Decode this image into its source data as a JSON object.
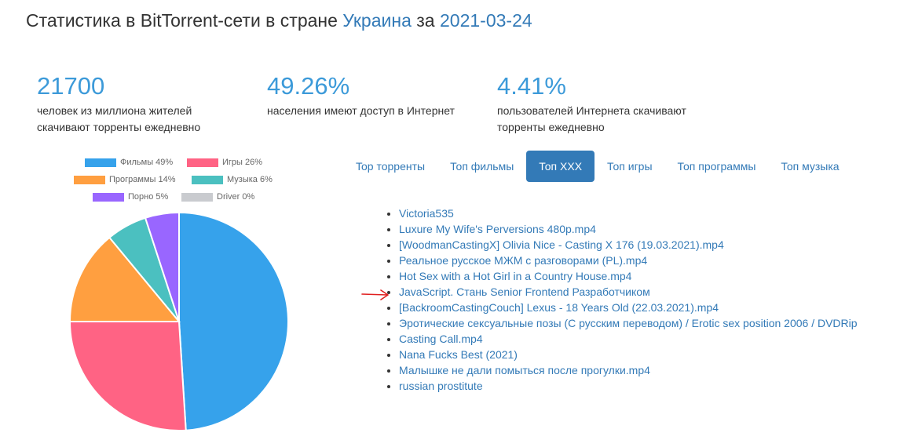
{
  "header": {
    "title_prefix": "Статистика в BitTorrent-сети в стране ",
    "country": "Украина",
    "title_middle": " за ",
    "date": "2021-03-24"
  },
  "stats": [
    {
      "value": "21700",
      "description": "человек из миллиона жителей скачивают торренты ежедневно"
    },
    {
      "value": "49.26%",
      "description": "населения имеют доступ в Интернет"
    },
    {
      "value": "4.41%",
      "description": "пользователей Интернета скачивают торренты ежедневно"
    }
  ],
  "chart_data": {
    "type": "pie",
    "categories": [
      "Фильмы",
      "Игры",
      "Программы",
      "Музыка",
      "Порно",
      "Driver"
    ],
    "values": [
      49,
      26,
      14,
      6,
      5,
      0
    ],
    "legend_labels": [
      "Фильмы 49%",
      "Игры 26%",
      "Программы 14%",
      "Музыка 6%",
      "Порно 5%",
      "Driver 0%"
    ],
    "colors": [
      "#36a2eb",
      "#ff6384",
      "#ff9f40",
      "#4bc0c0",
      "#9966ff",
      "#c9cbcf"
    ],
    "legend": "top"
  },
  "tabs": [
    {
      "label": "Top торренты",
      "active": false
    },
    {
      "label": "Топ фильмы",
      "active": false
    },
    {
      "label": "Топ XXX",
      "active": true
    },
    {
      "label": "Топ игры",
      "active": false
    },
    {
      "label": "Топ программы",
      "active": false
    },
    {
      "label": "Топ музыка",
      "active": false
    }
  ],
  "torrents": [
    "Victoria535",
    "Luxure My Wife's Perversions 480p.mp4",
    "[WoodmanCastingX] Olivia Nice - Casting X 176 (19.03.2021).mp4",
    "Реальное русское МЖМ с разговорами (PL).mp4",
    "Hot Sex with a Hot Girl in a Country House.mp4",
    "JavaScript. Стань Senior Frontend Разработчиком",
    "[BackroomCastingCouch] Lexus - 18 Years Old (22.03.2021).mp4",
    "Эротические сексуальные позы (С русским переводом) / Erotic sex position 2006 / DVDRip",
    "Casting Call.mp4",
    "Nana Fucks Best (2021)",
    "Малышке не дали помыться после прогулки.mp4",
    "russian prostitute"
  ],
  "annotation": {
    "arrow_color": "#e02020",
    "points_to_index": 5
  }
}
